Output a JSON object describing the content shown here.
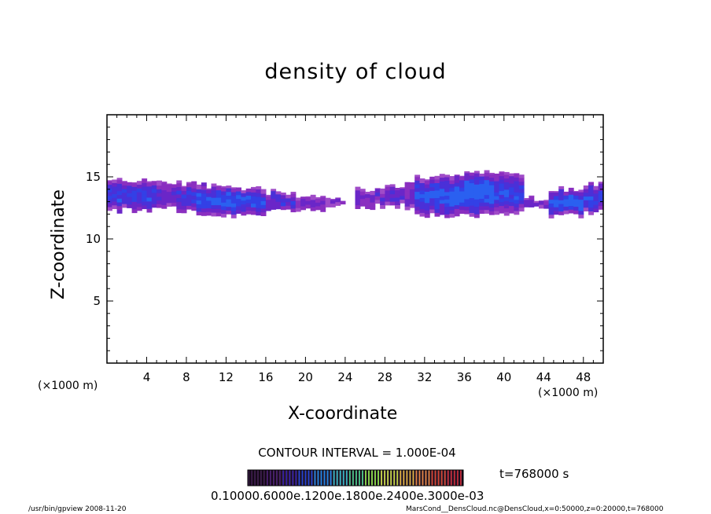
{
  "chart_data": {
    "type": "heatmap",
    "title": "density of cloud",
    "xlabel": "X-coordinate",
    "ylabel": "Z-coordinate",
    "x_unit_label": "(×1000 m)",
    "xlim": [
      0,
      50
    ],
    "ylim": [
      0,
      20
    ],
    "x_ticks": [
      4,
      8,
      12,
      16,
      20,
      24,
      28,
      32,
      36,
      40,
      44,
      48
    ],
    "y_ticks": [
      5,
      10,
      15
    ],
    "cloud_layer": [
      {
        "x0": 0.0,
        "x1": 5.0,
        "zmin": 12.3,
        "zmax": 14.7,
        "peak": 0.0006
      },
      {
        "x0": 5.0,
        "x1": 7.0,
        "zmin": 12.7,
        "zmax": 14.6,
        "peak": 0.0004
      },
      {
        "x0": 7.0,
        "x1": 9.0,
        "zmin": 12.2,
        "zmax": 14.5,
        "peak": 0.0005
      },
      {
        "x0": 9.0,
        "x1": 13.0,
        "zmin": 11.9,
        "zmax": 14.3,
        "peak": 0.0007
      },
      {
        "x0": 13.0,
        "x1": 16.0,
        "zmin": 12.0,
        "zmax": 14.0,
        "peak": 0.0007
      },
      {
        "x0": 16.0,
        "x1": 19.0,
        "zmin": 12.3,
        "zmax": 13.8,
        "peak": 0.0005
      },
      {
        "x0": 19.0,
        "x1": 22.0,
        "zmin": 12.4,
        "zmax": 13.5,
        "peak": 0.0003
      },
      {
        "x0": 22.0,
        "x1": 24.0,
        "zmin": 12.6,
        "zmax": 13.2,
        "peak": 0.0002
      },
      {
        "x0": 25.0,
        "x1": 27.0,
        "zmin": 12.5,
        "zmax": 14.0,
        "peak": 0.0003
      },
      {
        "x0": 27.0,
        "x1": 30.0,
        "zmin": 12.7,
        "zmax": 14.3,
        "peak": 0.0004
      },
      {
        "x0": 30.0,
        "x1": 31.0,
        "zmin": 12.4,
        "zmax": 14.7,
        "peak": 0.0003
      },
      {
        "x0": 31.0,
        "x1": 35.0,
        "zmin": 11.9,
        "zmax": 15.0,
        "peak": 0.0007
      },
      {
        "x0": 35.0,
        "x1": 39.0,
        "zmin": 11.9,
        "zmax": 15.3,
        "peak": 0.0008
      },
      {
        "x0": 39.0,
        "x1": 42.0,
        "zmin": 12.1,
        "zmax": 15.2,
        "peak": 0.0006
      },
      {
        "x0": 42.0,
        "x1": 44.5,
        "zmin": 12.4,
        "zmax": 13.3,
        "peak": 0.0003
      },
      {
        "x0": 44.5,
        "x1": 48.0,
        "zmin": 11.9,
        "zmax": 14.0,
        "peak": 0.0007
      },
      {
        "x0": 48.0,
        "x1": 50.0,
        "zmin": 12.2,
        "zmax": 14.5,
        "peak": 0.0006
      }
    ],
    "contour_interval_text": "CONTOUR INTERVAL = 1.000E-04",
    "colorbar": {
      "min": 0.0001,
      "max": 0.001,
      "labels_text": "0.10000.6000e.1200e.1800e.2400e.3000e-03",
      "colors": [
        "#2a0a3a",
        "#3a1060",
        "#3018a0",
        "#2040d0",
        "#2080e0",
        "#30b0c0",
        "#40c080",
        "#80d040",
        "#c0d040",
        "#e0b040",
        "#e08040",
        "#d04030",
        "#c02030"
      ]
    },
    "time_text": "t=768000 s"
  },
  "footer": {
    "left": "/usr/bin/gpview   2008-11-20",
    "right": "MarsCond__DensCloud.nc@DensCloud,x=0:50000,z=0:20000,t=768000"
  }
}
